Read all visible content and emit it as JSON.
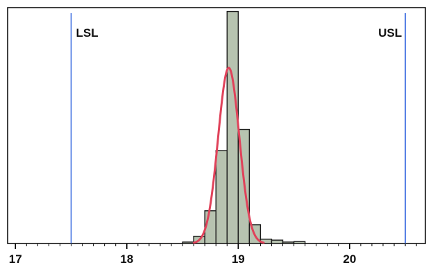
{
  "chart_data": {
    "type": "bar",
    "title": "",
    "xlabel": "",
    "ylabel": "",
    "xlim": [
      16.93,
      20.68
    ],
    "ylim": [
      0,
      49
    ],
    "x_ticks": [
      {
        "value": 17,
        "label": "17"
      },
      {
        "value": 18,
        "label": "18"
      },
      {
        "value": 19,
        "label": "19"
      },
      {
        "value": 20,
        "label": "20"
      }
    ],
    "minor_tick_step": 0.1,
    "histogram": {
      "bin_width": 0.1,
      "bins": [
        {
          "start": 18.5,
          "count": 0.3
        },
        {
          "start": 18.6,
          "count": 1.5
        },
        {
          "start": 18.7,
          "count": 6.8
        },
        {
          "start": 18.8,
          "count": 19.3
        },
        {
          "start": 18.9,
          "count": 48.2
        },
        {
          "start": 19.0,
          "count": 23.7
        },
        {
          "start": 19.1,
          "count": 3.9
        },
        {
          "start": 19.2,
          "count": 0.9
        },
        {
          "start": 19.3,
          "count": 0.7
        },
        {
          "start": 19.4,
          "count": 0.3
        },
        {
          "start": 19.5,
          "count": 0.4
        }
      ]
    },
    "normal_fit": {
      "mean": 18.915,
      "sd": 0.095,
      "peak": 36.5
    },
    "spec_limits": [
      {
        "name": "LSL",
        "label": "LSL",
        "value": 17.5
      },
      {
        "name": "USL",
        "label": "USL",
        "value": 20.5
      }
    ],
    "colors": {
      "bar_fill": "#b7c3b0",
      "bar_stroke": "#1a1a1a",
      "fit_curve": "#e0425a",
      "spec_line": "#3b6ce0",
      "frame": "#000000"
    },
    "grid": false,
    "legend": "none"
  }
}
